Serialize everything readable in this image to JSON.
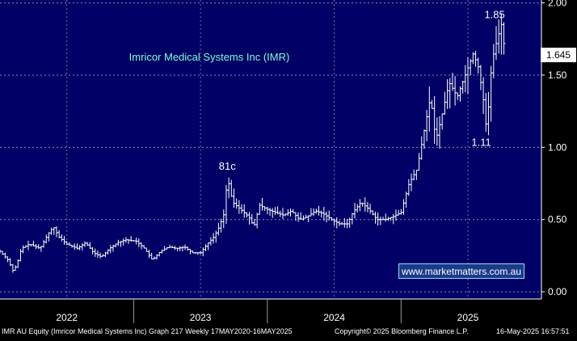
{
  "chart_data": {
    "type": "bar",
    "style": "ohlc-weekly",
    "title": "Imricor Medical Systems Inc (IMR)",
    "title_color": "#7fffd4",
    "background_color": "#000066",
    "grid": true,
    "y_axis": {
      "side": "right",
      "range": [
        -0.05,
        2.02
      ],
      "ticks": [
        "0.00",
        "0.50",
        "1.00",
        "1.50",
        "2.00"
      ]
    },
    "x_axis": {
      "range": [
        2021.5,
        2025.55
      ],
      "ticks": [
        {
          "label": "2022",
          "at": 2022.0
        },
        {
          "label": "2023",
          "at": 2023.0
        },
        {
          "label": "2024",
          "at": 2024.0
        },
        {
          "label": "2025",
          "at": 2025.0
        }
      ]
    },
    "last_value": "1.645",
    "annotations": [
      {
        "text": "81c",
        "x": 2023.2,
        "y": 0.8
      },
      {
        "text": "1.85",
        "x": 2025.2,
        "y": 1.85
      },
      {
        "text": "1.11",
        "x": 2025.1,
        "y": 1.11
      }
    ],
    "series": [
      {
        "points": [
          [
            2021.5,
            0.28
          ],
          [
            2021.56,
            0.22
          ],
          [
            2021.6,
            0.14
          ],
          [
            2021.63,
            0.2
          ],
          [
            2021.66,
            0.3
          ],
          [
            2021.72,
            0.33
          ],
          [
            2021.8,
            0.3
          ],
          [
            2021.86,
            0.4
          ],
          [
            2021.9,
            0.45
          ],
          [
            2021.94,
            0.38
          ],
          [
            2022.0,
            0.33
          ],
          [
            2022.08,
            0.3
          ],
          [
            2022.14,
            0.34
          ],
          [
            2022.2,
            0.27
          ],
          [
            2022.26,
            0.24
          ],
          [
            2022.32,
            0.3
          ],
          [
            2022.38,
            0.34
          ],
          [
            2022.44,
            0.36
          ],
          [
            2022.52,
            0.35
          ],
          [
            2022.58,
            0.3
          ],
          [
            2022.64,
            0.22
          ],
          [
            2022.7,
            0.28
          ],
          [
            2022.76,
            0.31
          ],
          [
            2022.82,
            0.3
          ],
          [
            2022.88,
            0.31
          ],
          [
            2022.94,
            0.27
          ],
          [
            2023.0,
            0.27
          ],
          [
            2023.06,
            0.34
          ],
          [
            2023.1,
            0.38
          ],
          [
            2023.14,
            0.45
          ],
          [
            2023.18,
            0.55
          ],
          [
            2023.2,
            0.8
          ],
          [
            2023.24,
            0.62
          ],
          [
            2023.3,
            0.57
          ],
          [
            2023.36,
            0.52
          ],
          [
            2023.4,
            0.45
          ],
          [
            2023.44,
            0.6
          ],
          [
            2023.5,
            0.57
          ],
          [
            2023.56,
            0.55
          ],
          [
            2023.62,
            0.53
          ],
          [
            2023.68,
            0.56
          ],
          [
            2023.74,
            0.5
          ],
          [
            2023.8,
            0.52
          ],
          [
            2023.86,
            0.56
          ],
          [
            2023.92,
            0.54
          ],
          [
            2023.98,
            0.5
          ],
          [
            2024.04,
            0.47
          ],
          [
            2024.1,
            0.47
          ],
          [
            2024.14,
            0.55
          ],
          [
            2024.2,
            0.62
          ],
          [
            2024.26,
            0.57
          ],
          [
            2024.32,
            0.5
          ],
          [
            2024.38,
            0.5
          ],
          [
            2024.44,
            0.52
          ],
          [
            2024.5,
            0.55
          ],
          [
            2024.56,
            0.75
          ],
          [
            2024.62,
            0.85
          ],
          [
            2024.66,
            1.05
          ],
          [
            2024.72,
            1.35
          ],
          [
            2024.76,
            1.05
          ],
          [
            2024.8,
            1.2
          ],
          [
            2024.86,
            1.45
          ],
          [
            2024.92,
            1.35
          ],
          [
            2024.98,
            1.5
          ],
          [
            2025.04,
            1.65
          ],
          [
            2025.08,
            1.55
          ],
          [
            2025.12,
            1.3
          ],
          [
            2025.14,
            1.11
          ],
          [
            2025.18,
            1.6
          ],
          [
            2025.22,
            1.75
          ],
          [
            2025.25,
            1.85
          ],
          [
            2025.28,
            1.645
          ]
        ]
      }
    ]
  },
  "watermark": "www.marketmatters.com.au",
  "footer": {
    "left": "IMR AU Equity (Imricor Medical Systems Inc) Graph 217  Weekly 17MAY2020-16MAY2025",
    "center": "Copyright© 2025 Bloomberg Finance L.P.",
    "right": "16-May-2025 16:57:51"
  }
}
